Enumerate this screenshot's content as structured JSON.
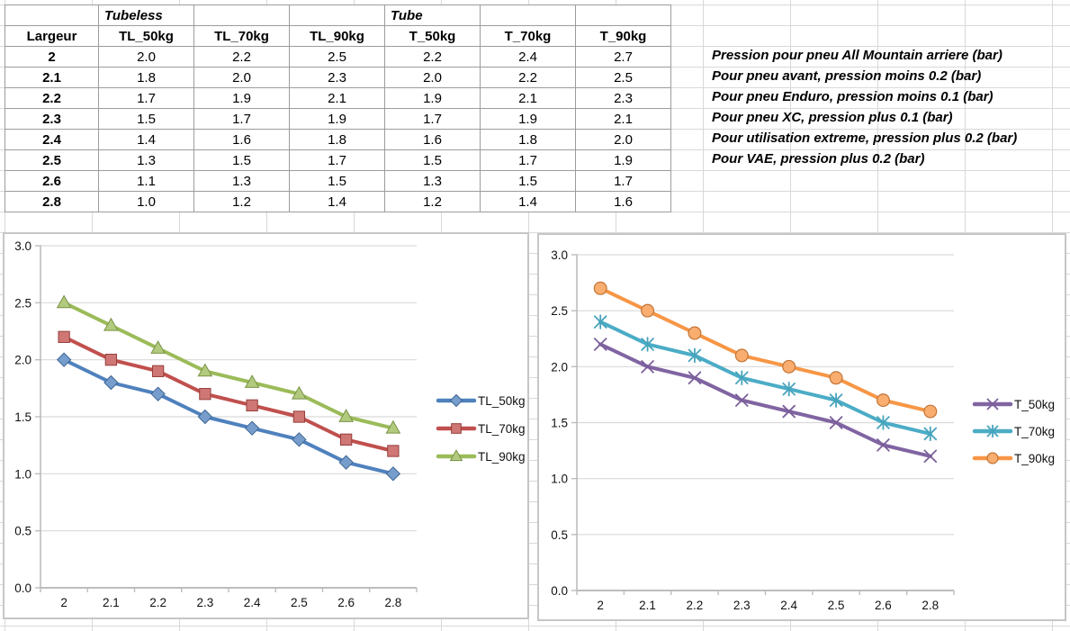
{
  "sheet": {
    "group_headers": {
      "tubeless": "Tubeless",
      "tube": "Tube"
    },
    "columns": [
      "Largeur",
      "TL_50kg",
      "TL_70kg",
      "TL_90kg",
      "T_50kg",
      "T_70kg",
      "T_90kg"
    ],
    "rows": [
      [
        "2",
        "2.0",
        "2.2",
        "2.5",
        "2.2",
        "2.4",
        "2.7"
      ],
      [
        "2.1",
        "1.8",
        "2.0",
        "2.3",
        "2.0",
        "2.2",
        "2.5"
      ],
      [
        "2.2",
        "1.7",
        "1.9",
        "2.1",
        "1.9",
        "2.1",
        "2.3"
      ],
      [
        "2.3",
        "1.5",
        "1.7",
        "1.9",
        "1.7",
        "1.9",
        "2.1"
      ],
      [
        "2.4",
        "1.4",
        "1.6",
        "1.8",
        "1.6",
        "1.8",
        "2.0"
      ],
      [
        "2.5",
        "1.3",
        "1.5",
        "1.7",
        "1.5",
        "1.7",
        "1.9"
      ],
      [
        "2.6",
        "1.1",
        "1.3",
        "1.5",
        "1.3",
        "1.5",
        "1.7"
      ],
      [
        "2.8",
        "1.0",
        "1.2",
        "1.4",
        "1.2",
        "1.4",
        "1.6"
      ]
    ],
    "annotations": [
      "Pression pour pneu All Mountain arriere (bar)",
      "Pour pneu avant, pression moins 0.2 (bar)",
      "Pour pneu Enduro, pression moins 0.1 (bar)",
      "Pour pneu XC, pression plus 0.1 (bar)",
      "Pour utilisation extreme, pression plus 0.2 (bar)",
      "Pour VAE, pression plus 0.2 (bar)"
    ]
  },
  "chart_data": [
    {
      "type": "line",
      "title": "",
      "categories": [
        "2",
        "2.1",
        "2.2",
        "2.3",
        "2.4",
        "2.5",
        "2.6",
        "2.8"
      ],
      "series": [
        {
          "name": "TL_50kg",
          "marker": "diamond",
          "color": "#4F81BD",
          "values": [
            2.0,
            1.8,
            1.7,
            1.5,
            1.4,
            1.3,
            1.1,
            1.0
          ]
        },
        {
          "name": "TL_70kg",
          "marker": "square",
          "color": "#C0504D",
          "values": [
            2.2,
            2.0,
            1.9,
            1.7,
            1.6,
            1.5,
            1.3,
            1.2
          ]
        },
        {
          "name": "TL_90kg",
          "marker": "triangle",
          "color": "#9BBB59",
          "values": [
            2.5,
            2.3,
            2.1,
            1.9,
            1.8,
            1.7,
            1.5,
            1.4
          ]
        }
      ],
      "ylim": [
        0,
        3
      ],
      "ytick_step": 0.5,
      "ytick_labels": [
        "0.0",
        "0.5",
        "1.0",
        "1.5",
        "2.0",
        "2.5",
        "3.0"
      ],
      "xlabel": "",
      "ylabel": "",
      "grid": true,
      "legend_position": "right"
    },
    {
      "type": "line",
      "title": "",
      "categories": [
        "2",
        "2.1",
        "2.2",
        "2.3",
        "2.4",
        "2.5",
        "2.6",
        "2.8"
      ],
      "series": [
        {
          "name": "T_50kg",
          "marker": "x",
          "color": "#8064A2",
          "values": [
            2.2,
            2.0,
            1.9,
            1.7,
            1.6,
            1.5,
            1.3,
            1.2
          ]
        },
        {
          "name": "T_70kg",
          "marker": "star",
          "color": "#4BACC6",
          "values": [
            2.4,
            2.2,
            2.1,
            1.9,
            1.8,
            1.7,
            1.5,
            1.4
          ]
        },
        {
          "name": "T_90kg",
          "marker": "circle",
          "color": "#F79646",
          "values": [
            2.7,
            2.5,
            2.3,
            2.1,
            2.0,
            1.9,
            1.7,
            1.6
          ]
        }
      ],
      "ylim": [
        0,
        3
      ],
      "ytick_step": 0.5,
      "ytick_labels": [
        "0.0",
        "0.5",
        "1.0",
        "1.5",
        "2.0",
        "2.5",
        "3.0"
      ],
      "xlabel": "",
      "ylabel": "",
      "grid": true,
      "legend_position": "right"
    }
  ],
  "colors": {
    "sheet_gridline": "#D9D9D9",
    "table_border": "#9C9C9C",
    "chart_border": "#C6C6C6",
    "chart_gridline": "#D9D9D9",
    "axis_line": "#BDBDBD",
    "text": "#000000"
  }
}
